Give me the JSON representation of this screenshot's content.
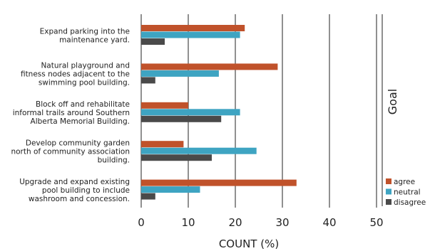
{
  "chart_data": {
    "type": "bar",
    "orientation": "horizontal",
    "facet_label": "Goal",
    "xlabel": "COUNT (%)",
    "xlim": [
      0,
      50
    ],
    "xticks": [
      0,
      10,
      20,
      30,
      40,
      50
    ],
    "grid": "vertical",
    "legend_placement": "right",
    "categories": [
      [
        "Expand parking into the",
        "maintenance yard."
      ],
      [
        "Natural playground and",
        "fitness nodes adjacent to the",
        "swimming pool building."
      ],
      [
        "Block off and rehabilitate",
        "informal trails around Southern",
        "Alberta Memorial Building."
      ],
      [
        "Develop community garden",
        "north of community association",
        "building."
      ],
      [
        "Upgrade and expand existing",
        "pool building to include",
        "washroom and concession."
      ]
    ],
    "series": [
      {
        "name": "agree",
        "color": "#c0522b",
        "values": [
          22,
          29,
          10,
          9,
          33
        ]
      },
      {
        "name": "neutral",
        "color": "#3ea4c2",
        "values": [
          21,
          16.5,
          21,
          24.5,
          12.5
        ]
      },
      {
        "name": "disagree",
        "color": "#4a4a4a",
        "values": [
          5,
          3,
          17,
          15,
          3
        ]
      }
    ]
  }
}
